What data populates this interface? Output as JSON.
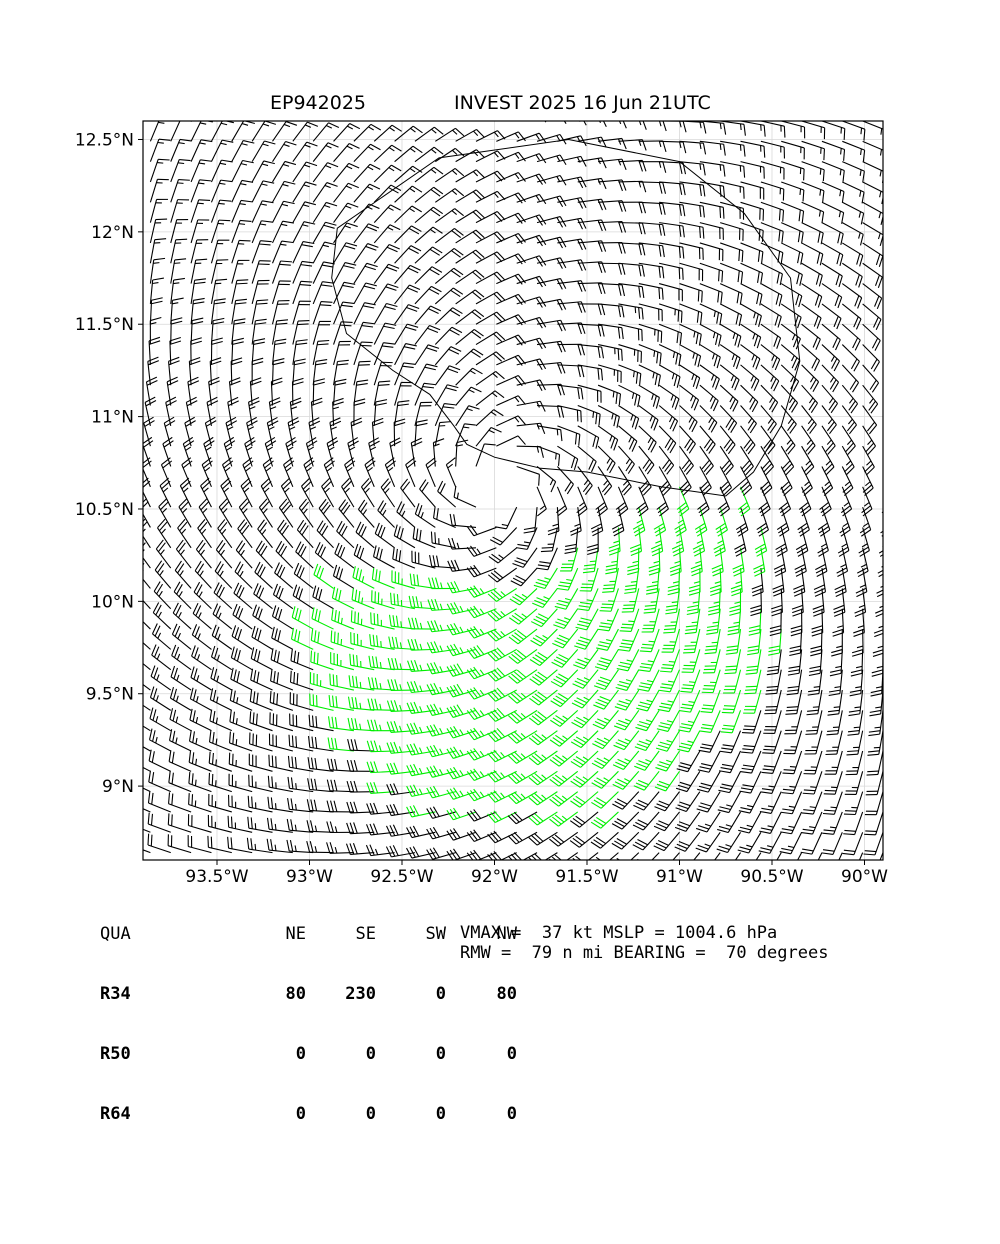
{
  "title_left": "EP942025",
  "title_right": "INVEST 2025 16 Jun 21UTC",
  "chart_data": {
    "type": "wind_barbs",
    "title": "INVEST 2025 16 Jun 21UTC",
    "storm_id": "EP942025",
    "xlim": [
      -93.9,
      -89.9
    ],
    "ylim": [
      8.6,
      12.6
    ],
    "x_ticks": [
      -93.5,
      -93.0,
      -92.5,
      -92.0,
      -91.5,
      -91.0,
      -90.5,
      -90.0
    ],
    "x_tick_labels": [
      "93.5°W",
      "93°W",
      "92.5°W",
      "92°W",
      "91.5°W",
      "91°W",
      "90.5°W",
      "90°W"
    ],
    "y_ticks": [
      9.0,
      9.5,
      10.0,
      10.5,
      11.0,
      11.5,
      12.0,
      12.5
    ],
    "y_tick_labels": [
      "9°N",
      "9.5°N",
      "10°N",
      "10.5°N",
      "11°N",
      "11.5°N",
      "12°N",
      "12.5°N"
    ],
    "grid": true,
    "center": {
      "lon": -91.98,
      "lat": 10.62
    },
    "barb_colors": {
      "below_34kt": "#000000",
      "34kt_to_50kt": "#00ee00",
      "50kt_to_64kt": "#e8a500"
    },
    "r34_contour_color": "#000000"
  },
  "table": {
    "header": [
      "QUA",
      "NE",
      "SE",
      "SW",
      "NW"
    ],
    "rows": [
      {
        "label": "R34",
        "values": [
          "80",
          "230",
          "0",
          "80"
        ]
      },
      {
        "label": "R50",
        "values": [
          "0",
          "0",
          "0",
          "0"
        ]
      },
      {
        "label": "R64",
        "values": [
          "0",
          "0",
          "0",
          "0"
        ]
      }
    ]
  },
  "info": {
    "line1": "VMAX =  37 kt MSLP = 1004.6 hPa",
    "line2": "RMW =  79 n mi BEARING =  70 degrees"
  }
}
